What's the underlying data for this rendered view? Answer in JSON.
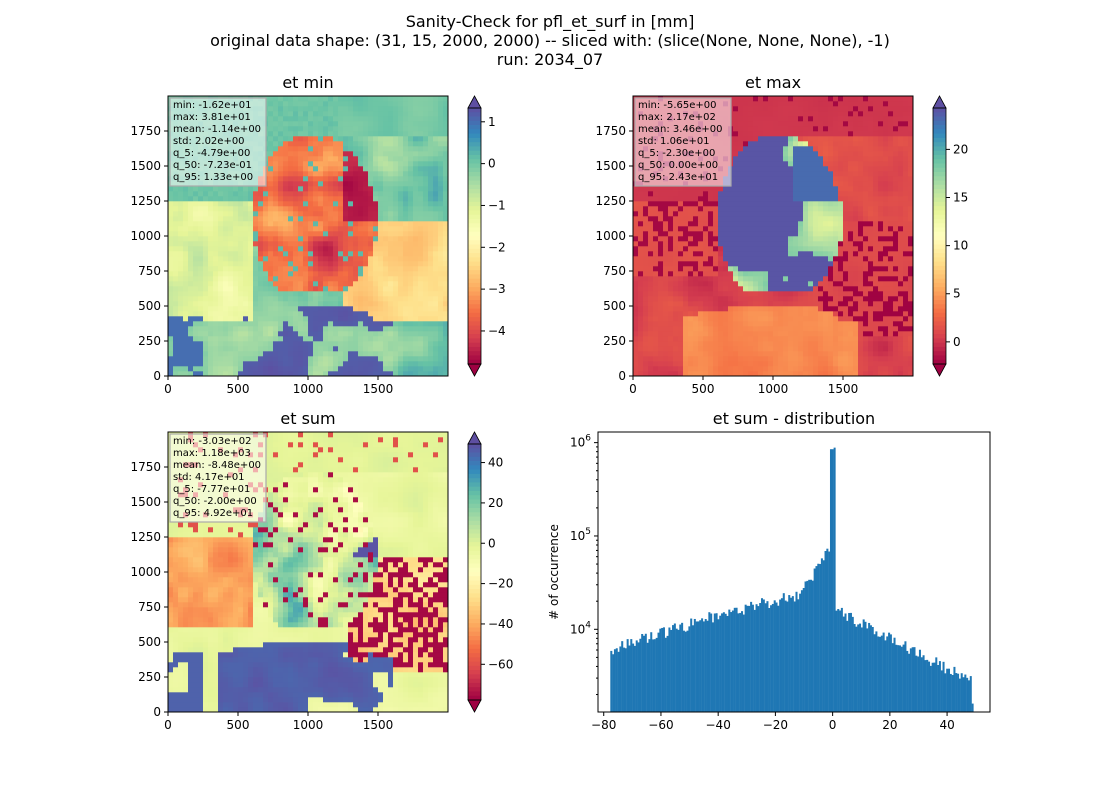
{
  "figure": {
    "suptitle": [
      "Sanity-Check for pfl_et_surf in [mm]",
      "original data shape: (31, 15, 2000, 2000) -- sliced with: (slice(None, None, None), -1)",
      "run: 2034_07"
    ]
  },
  "colors": {
    "spectral": [
      "#9e0142",
      "#d53e4f",
      "#f46d43",
      "#fdae61",
      "#fee08b",
      "#ffffbf",
      "#e6f598",
      "#abdda4",
      "#66c2a5",
      "#3288bd",
      "#5e4fa2"
    ],
    "histogram_bar": "#1f77b4"
  },
  "chart_data": [
    {
      "type": "heatmap",
      "title": "et min",
      "xticks": [
        "0",
        "500",
        "1000",
        "1500"
      ],
      "yticks": [
        "0",
        "250",
        "500",
        "750",
        "1000",
        "1250",
        "1500",
        "1750"
      ],
      "xlim": [
        0,
        2000
      ],
      "ylim": [
        0,
        2000
      ],
      "colorbar": {
        "vmin": -4.79,
        "vmax": 1.33,
        "ticks": [
          -4,
          -3,
          -2,
          -1,
          0,
          1
        ],
        "tick_labels": [
          "−4",
          "−3",
          "−2",
          "−1",
          "0",
          "1"
        ]
      },
      "stats": [
        "min: -1.62e+01",
        "max: 3.81e+01",
        "mean: -1.14e+00",
        "std: 2.02e+00",
        "q_5: -4.79e+00",
        "q_50: -7.23e-01",
        "q_95: 1.33e+00"
      ]
    },
    {
      "type": "heatmap",
      "title": "et max",
      "xticks": [
        "0",
        "500",
        "1000",
        "1500"
      ],
      "yticks": [
        "0",
        "250",
        "500",
        "750",
        "1000",
        "1250",
        "1500",
        "1750"
      ],
      "xlim": [
        0,
        2000
      ],
      "ylim": [
        0,
        2000
      ],
      "colorbar": {
        "vmin": -2.3,
        "vmax": 24.3,
        "ticks": [
          0,
          5,
          10,
          15,
          20
        ],
        "tick_labels": [
          "0",
          "5",
          "10",
          "15",
          "20"
        ]
      },
      "stats": [
        "min: -5.65e+00",
        "max: 2.17e+02",
        "mean: 3.46e+00",
        "std: 1.06e+01",
        "q_5: -2.30e+00",
        "q_50: 0.00e+00",
        "q_95: 2.43e+01"
      ]
    },
    {
      "type": "heatmap",
      "title": "et sum",
      "xticks": [
        "0",
        "500",
        "1000",
        "1500"
      ],
      "yticks": [
        "0",
        "250",
        "500",
        "750",
        "1000",
        "1250",
        "1500",
        "1750"
      ],
      "xlim": [
        0,
        2000
      ],
      "ylim": [
        0,
        2000
      ],
      "colorbar": {
        "vmin": -77.7,
        "vmax": 49.2,
        "ticks": [
          -60,
          -40,
          -20,
          0,
          20,
          40
        ],
        "tick_labels": [
          "−60",
          "−40",
          "−20",
          "0",
          "20",
          "40"
        ]
      },
      "stats": [
        "min: -3.03e+02",
        "max: 1.18e+03",
        "mean: -8.48e+00",
        "std: 4.17e+01",
        "q_5: -7.77e+01",
        "q_50: -2.00e+00",
        "q_95: 4.92e+01"
      ]
    },
    {
      "type": "bar",
      "title": "et sum - distribution",
      "ylabel": "# of occurrence",
      "yscale": "log",
      "xlim": [
        -82,
        55
      ],
      "ylim": [
        1300,
        1300000
      ],
      "xticks": [
        -80,
        -60,
        -40,
        -20,
        0,
        20,
        40
      ],
      "xtick_labels": [
        "−80",
        "−60",
        "−40",
        "−20",
        "0",
        "20",
        "40"
      ],
      "yticks": [
        10000,
        100000,
        1000000
      ],
      "ytick_labels": [
        "10^4",
        "10^5",
        "10^6"
      ],
      "bin_range": [
        -77.7,
        49.2
      ],
      "bin_count": 200,
      "description": "histogram rising from ~6e3 at -78 to ~7e4 near -3, spike ~8.5e5 at 0, decaying to ~2.5e3 at 49"
    }
  ]
}
